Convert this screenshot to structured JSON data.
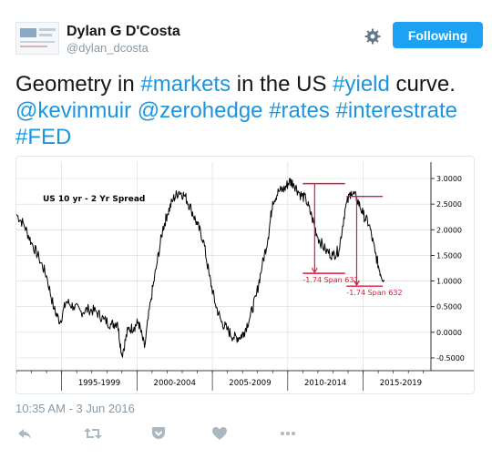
{
  "user": {
    "name": "Dylan G D'Costa",
    "handle": "@dylan_dcosta"
  },
  "header": {
    "follow_label": "Following",
    "settings_icon": "gear-icon"
  },
  "tweet": {
    "segments": [
      {
        "text": "Geometry in ",
        "link": false
      },
      {
        "text": "#markets",
        "link": true
      },
      {
        "text": " in the US ",
        "link": false
      },
      {
        "text": "#yield",
        "link": true
      },
      {
        "text": " curve. ",
        "link": false
      },
      {
        "text": "@kevinmuir",
        "link": true
      },
      {
        "text": " ",
        "link": false
      },
      {
        "text": "@zerohedge",
        "link": true
      },
      {
        "text": " ",
        "link": false
      },
      {
        "text": "#rates",
        "link": true
      },
      {
        "text": " ",
        "link": false
      },
      {
        "text": "#interestrate",
        "link": true
      },
      {
        "text": " ",
        "link": false
      },
      {
        "text": "#FED",
        "link": true
      }
    ],
    "timestamp": "10:35 AM - 3 Jun 2016"
  },
  "colors": {
    "link": "#1b95e0",
    "follow_button": "#1da1f2",
    "annotation": "#e0173d"
  },
  "actions": [
    "reply-icon",
    "retweet-icon",
    "pocket-icon",
    "like-icon",
    "more-icon"
  ],
  "chart_data": {
    "type": "line",
    "title": "US 10 yr - 2 Yr Spread",
    "x_tick_labels": [
      "1995-1999",
      "2000-2004",
      "2005-2009",
      "2010-2014",
      "2015-2019"
    ],
    "y_ticks": [
      "3.0000",
      "2.5000",
      "2.0000",
      "1.5000",
      "1.0000",
      "0.5000",
      "0.0000",
      "-0.5000"
    ],
    "ylim": [
      -0.5,
      3.0
    ],
    "xlim": [
      1992.0,
      2019.5
    ],
    "y_axis_side": "right",
    "series": [
      {
        "x": [
          1992.0,
          1992.5,
          1993.0,
          1993.5,
          1994.0,
          1994.5,
          1994.9,
          1995.3,
          1995.8,
          1996.3,
          1996.8,
          1997.3,
          1997.8,
          1998.3,
          1998.7,
          1999.0,
          1999.4,
          1999.8,
          2000.1,
          2000.5,
          2000.9,
          2001.3,
          2001.7,
          2002.0,
          2002.4,
          2002.8,
          2003.2,
          2003.6,
          2004.0,
          2004.4,
          2004.8,
          2005.2,
          2005.6,
          2006.0,
          2006.4,
          2006.8,
          2007.1,
          2007.5,
          2007.9,
          2008.3,
          2008.7,
          2009.0,
          2009.4,
          2009.8,
          2010.1,
          2010.4,
          2010.8,
          2011.2,
          2011.6,
          2012.0,
          2012.5,
          2013.0,
          2013.4,
          2013.8,
          2014.2,
          2014.6,
          2015.0,
          2015.4,
          2015.8,
          2016.1,
          2016.4
        ],
        "values": [
          2.3,
          2.1,
          1.75,
          1.45,
          1.1,
          0.45,
          0.2,
          0.6,
          0.5,
          0.4,
          0.45,
          0.4,
          0.25,
          0.15,
          0.2,
          -0.45,
          0.05,
          0.1,
          0.2,
          -0.3,
          0.6,
          1.3,
          2.0,
          2.3,
          2.6,
          2.75,
          2.65,
          2.4,
          2.1,
          1.8,
          1.1,
          0.55,
          0.2,
          0.05,
          -0.1,
          -0.1,
          0.0,
          0.3,
          0.7,
          1.3,
          1.85,
          2.55,
          2.75,
          2.8,
          2.95,
          2.9,
          2.7,
          2.6,
          2.25,
          1.85,
          1.6,
          1.5,
          1.6,
          2.4,
          2.75,
          2.6,
          2.3,
          2.1,
          1.55,
          1.2,
          1.0
        ]
      }
    ],
    "annotations": [
      {
        "text": "-1.74 Span 631",
        "x_start": 2011.0,
        "x_end": 2013.8,
        "y_top": 2.9,
        "y_bottom": 1.15
      },
      {
        "text": "-1.74 Span 632",
        "x_start": 2013.9,
        "x_end": 2016.3,
        "y_top": 2.65,
        "y_bottom": 0.9
      }
    ]
  }
}
